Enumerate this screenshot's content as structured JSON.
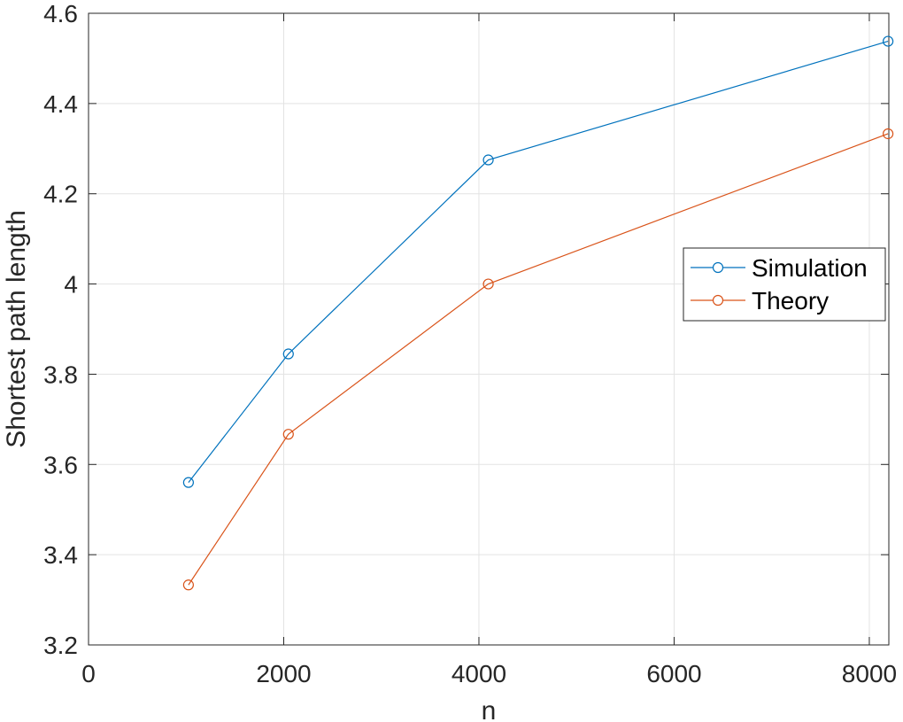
{
  "chart_data": {
    "type": "line",
    "title": "",
    "xlabel": "n",
    "ylabel": "Shortest path length",
    "xlim": [
      0,
      8200
    ],
    "ylim": [
      3.2,
      4.6
    ],
    "xticks": [
      0,
      2000,
      4000,
      6000,
      8000
    ],
    "xtick_labels": [
      "0",
      "2000",
      "4000",
      "6000",
      "8000"
    ],
    "yticks": [
      3.2,
      3.4,
      3.6,
      3.8,
      4.0,
      4.2,
      4.4,
      4.6
    ],
    "ytick_labels": [
      "3.2",
      "3.4",
      "3.6",
      "3.8",
      "4",
      "4.2",
      "4.4",
      "4.6"
    ],
    "grid": true,
    "legend_position": "right",
    "x": [
      1024,
      2048,
      4096,
      8192
    ],
    "series": [
      {
        "name": "Simulation",
        "color": "#0072BD",
        "marker": "circle",
        "values": [
          3.56,
          3.845,
          4.275,
          4.538
        ]
      },
      {
        "name": "Theory",
        "color": "#D95319",
        "marker": "circle",
        "values": [
          3.333,
          3.667,
          4.0,
          4.333
        ]
      }
    ]
  }
}
